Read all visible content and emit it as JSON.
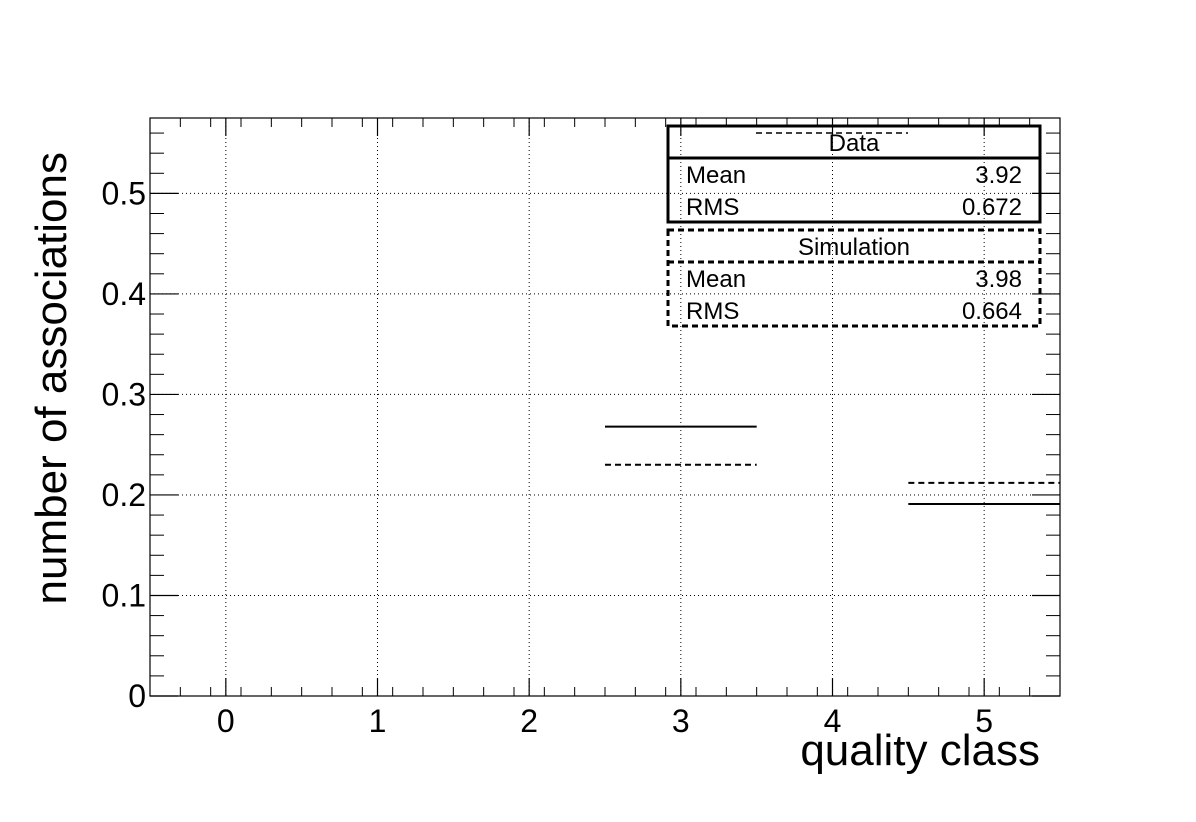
{
  "chart_data": {
    "type": "histogram",
    "title": "",
    "xlabel": "quality class",
    "ylabel": "number of associations",
    "xlim": [
      -0.5,
      5.5
    ],
    "ylim": [
      0,
      0.575
    ],
    "x_ticks": [
      "0",
      "1",
      "2",
      "3",
      "4",
      "5"
    ],
    "y_ticks": [
      "0",
      "0.1",
      "0.2",
      "0.3",
      "0.4",
      "0.5"
    ],
    "grid": true,
    "series": [
      {
        "name": "Data",
        "line_style": "solid",
        "bins": [
          {
            "x": 3,
            "value": 0.268
          },
          {
            "x": 5,
            "value": 0.191
          }
        ],
        "mean": "3.92",
        "rms": "0.672"
      },
      {
        "name": "Simulation",
        "line_style": "dashed",
        "bins": [
          {
            "x": 3,
            "value": 0.23
          },
          {
            "x": 5,
            "value": 0.212
          }
        ],
        "mean": "3.98",
        "rms": "0.664"
      }
    ],
    "stat_labels": {
      "mean": "Mean",
      "rms": "RMS"
    }
  },
  "colors": {
    "line": "#000000",
    "grid": "#000000",
    "background": "#ffffff"
  }
}
